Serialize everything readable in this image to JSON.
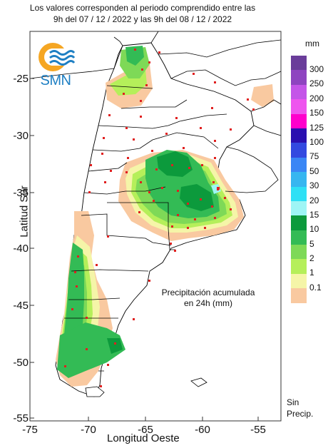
{
  "title": {
    "line1": "Los valores corresponden al periodo comprendido entre las",
    "line2": "9h del 07 / 12 / 2022  y las 9h del 08 / 12 / 2022"
  },
  "logo": {
    "text": "SMN"
  },
  "axes": {
    "ylabel": "Latitud Sur",
    "xlabel": "Longitud Oeste",
    "yticks": [
      "-25",
      "-30",
      "-35",
      "-40",
      "-45",
      "-50",
      "-55"
    ],
    "xticks": [
      "-75",
      "-70",
      "-65",
      "-60",
      "-55"
    ]
  },
  "annotation": {
    "line1": "Precipitación acumulada",
    "line2": "en 24h (mm)"
  },
  "legend": {
    "unit": "mm",
    "items": [
      {
        "label": "300",
        "color": "#6a3d9a"
      },
      {
        "label": "250",
        "color": "#8e44c0"
      },
      {
        "label": "200",
        "color": "#c455e8"
      },
      {
        "label": "150",
        "color": "#ee55ee"
      },
      {
        "label": "125",
        "color": "#ff00cc"
      },
      {
        "label": "100",
        "color": "#2a0fb0"
      },
      {
        "label": "75",
        "color": "#3349e0"
      },
      {
        "label": "50",
        "color": "#3a86f5"
      },
      {
        "label": "30",
        "color": "#36b6f0"
      },
      {
        "label": "20",
        "color": "#2ee0f5"
      },
      {
        "label": "15",
        "color": "#9ef5f5"
      },
      {
        "label": "10",
        "color": "#0c9a3c"
      },
      {
        "label": "5",
        "color": "#33bb55"
      },
      {
        "label": "2",
        "color": "#7ed957"
      },
      {
        "label": "1",
        "color": "#b5ef5a"
      },
      {
        "label": "0.1",
        "color": "#f5f5a8"
      },
      {
        "label": "",
        "color": "#f9c9a0"
      }
    ],
    "no_precip_line1": "Sin",
    "no_precip_line2": "Precip."
  }
}
